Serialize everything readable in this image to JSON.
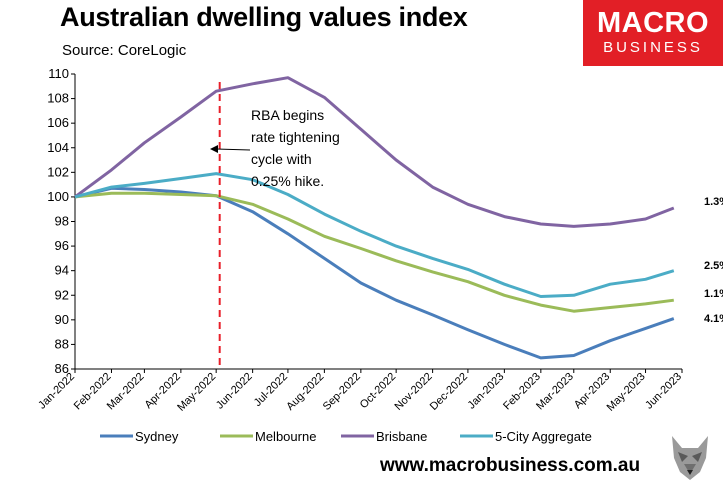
{
  "header": {
    "title": "Australian dwelling values index",
    "subtitle": "Source: CoreLogic"
  },
  "logo": {
    "line1": "MACRO",
    "line2": "BUSINESS"
  },
  "footer": {
    "website": "www.macrobusiness.com.au"
  },
  "chart_data": {
    "type": "line",
    "title": "Australian dwelling values index",
    "ylim": [
      86,
      110
    ],
    "yticks": [
      86,
      88,
      90,
      92,
      94,
      96,
      98,
      100,
      102,
      104,
      106,
      108,
      110
    ],
    "xlim": [
      "2022-01-01",
      "2023-06-01"
    ],
    "xticks": [
      "Jan-2022",
      "Feb-2022",
      "Mar-2022",
      "Apr-2022",
      "May-2022",
      "Jun-2022",
      "Jul-2022",
      "Aug-2022",
      "Sep-2022",
      "Oct-2022",
      "Nov-2022",
      "Dec-2022",
      "Jan-2023",
      "Feb-2023",
      "Mar-2023",
      "Apr-2023",
      "May-2023",
      "Jun-2023"
    ],
    "grid": false,
    "legend_position": "bottom",
    "annotation": {
      "lines": [
        "RBA begins",
        "rate tightening",
        "cycle with",
        "0.25% hike."
      ],
      "event_date": "2022-05-04",
      "line_color": "#e8202a"
    },
    "series": [
      {
        "name": "Sydney",
        "color": "#4a7ebb",
        "end_label": "4.1%",
        "points": [
          [
            "2022-01-01",
            100.0
          ],
          [
            "2022-02-01",
            100.7
          ],
          [
            "2022-03-01",
            100.6
          ],
          [
            "2022-04-01",
            100.4
          ],
          [
            "2022-05-01",
            100.1
          ],
          [
            "2022-06-01",
            98.8
          ],
          [
            "2022-07-01",
            97.0
          ],
          [
            "2022-08-01",
            95.0
          ],
          [
            "2022-09-01",
            93.0
          ],
          [
            "2022-10-01",
            91.6
          ],
          [
            "2022-11-01",
            90.4
          ],
          [
            "2022-12-01",
            89.2
          ],
          [
            "2023-01-01",
            88.0
          ],
          [
            "2023-02-01",
            86.9
          ],
          [
            "2023-03-01",
            87.1
          ],
          [
            "2023-04-01",
            88.3
          ],
          [
            "2023-05-01",
            89.3
          ],
          [
            "2023-05-25",
            90.1
          ]
        ]
      },
      {
        "name": "Melbourne",
        "color": "#9bbb59",
        "end_label": "1.1%",
        "points": [
          [
            "2022-01-01",
            100.0
          ],
          [
            "2022-02-01",
            100.3
          ],
          [
            "2022-03-01",
            100.3
          ],
          [
            "2022-04-01",
            100.2
          ],
          [
            "2022-05-01",
            100.1
          ],
          [
            "2022-06-01",
            99.4
          ],
          [
            "2022-07-01",
            98.2
          ],
          [
            "2022-08-01",
            96.8
          ],
          [
            "2022-09-01",
            95.8
          ],
          [
            "2022-10-01",
            94.8
          ],
          [
            "2022-11-01",
            93.9
          ],
          [
            "2022-12-01",
            93.1
          ],
          [
            "2023-01-01",
            92.0
          ],
          [
            "2023-02-01",
            91.2
          ],
          [
            "2023-03-01",
            90.7
          ],
          [
            "2023-04-01",
            91.0
          ],
          [
            "2023-05-01",
            91.3
          ],
          [
            "2023-05-25",
            91.6
          ]
        ]
      },
      {
        "name": "Brisbane",
        "color": "#8064a2",
        "end_label": "1.3%",
        "points": [
          [
            "2022-01-01",
            100.0
          ],
          [
            "2022-02-01",
            102.2
          ],
          [
            "2022-03-01",
            104.4
          ],
          [
            "2022-04-01",
            106.5
          ],
          [
            "2022-05-01",
            108.6
          ],
          [
            "2022-06-01",
            109.2
          ],
          [
            "2022-07-01",
            109.7
          ],
          [
            "2022-08-01",
            108.1
          ],
          [
            "2022-09-01",
            105.5
          ],
          [
            "2022-10-01",
            103.0
          ],
          [
            "2022-11-01",
            100.8
          ],
          [
            "2022-12-01",
            99.4
          ],
          [
            "2023-01-01",
            98.4
          ],
          [
            "2023-02-01",
            97.8
          ],
          [
            "2023-03-01",
            97.6
          ],
          [
            "2023-04-01",
            97.8
          ],
          [
            "2023-05-01",
            98.2
          ],
          [
            "2023-05-25",
            99.1
          ]
        ]
      },
      {
        "name": "5-City Aggregate",
        "color": "#4bacc6",
        "end_label": "2.5%",
        "points": [
          [
            "2022-01-01",
            100.0
          ],
          [
            "2022-02-01",
            100.8
          ],
          [
            "2022-03-01",
            101.1
          ],
          [
            "2022-04-01",
            101.5
          ],
          [
            "2022-05-01",
            101.9
          ],
          [
            "2022-06-01",
            101.4
          ],
          [
            "2022-07-01",
            100.2
          ],
          [
            "2022-08-01",
            98.6
          ],
          [
            "2022-09-01",
            97.2
          ],
          [
            "2022-10-01",
            96.0
          ],
          [
            "2022-11-01",
            95.0
          ],
          [
            "2022-12-01",
            94.1
          ],
          [
            "2023-01-01",
            92.9
          ],
          [
            "2023-02-01",
            91.9
          ],
          [
            "2023-03-01",
            92.0
          ],
          [
            "2023-04-01",
            92.9
          ],
          [
            "2023-05-01",
            93.3
          ],
          [
            "2023-05-25",
            94.0
          ]
        ]
      }
    ]
  }
}
